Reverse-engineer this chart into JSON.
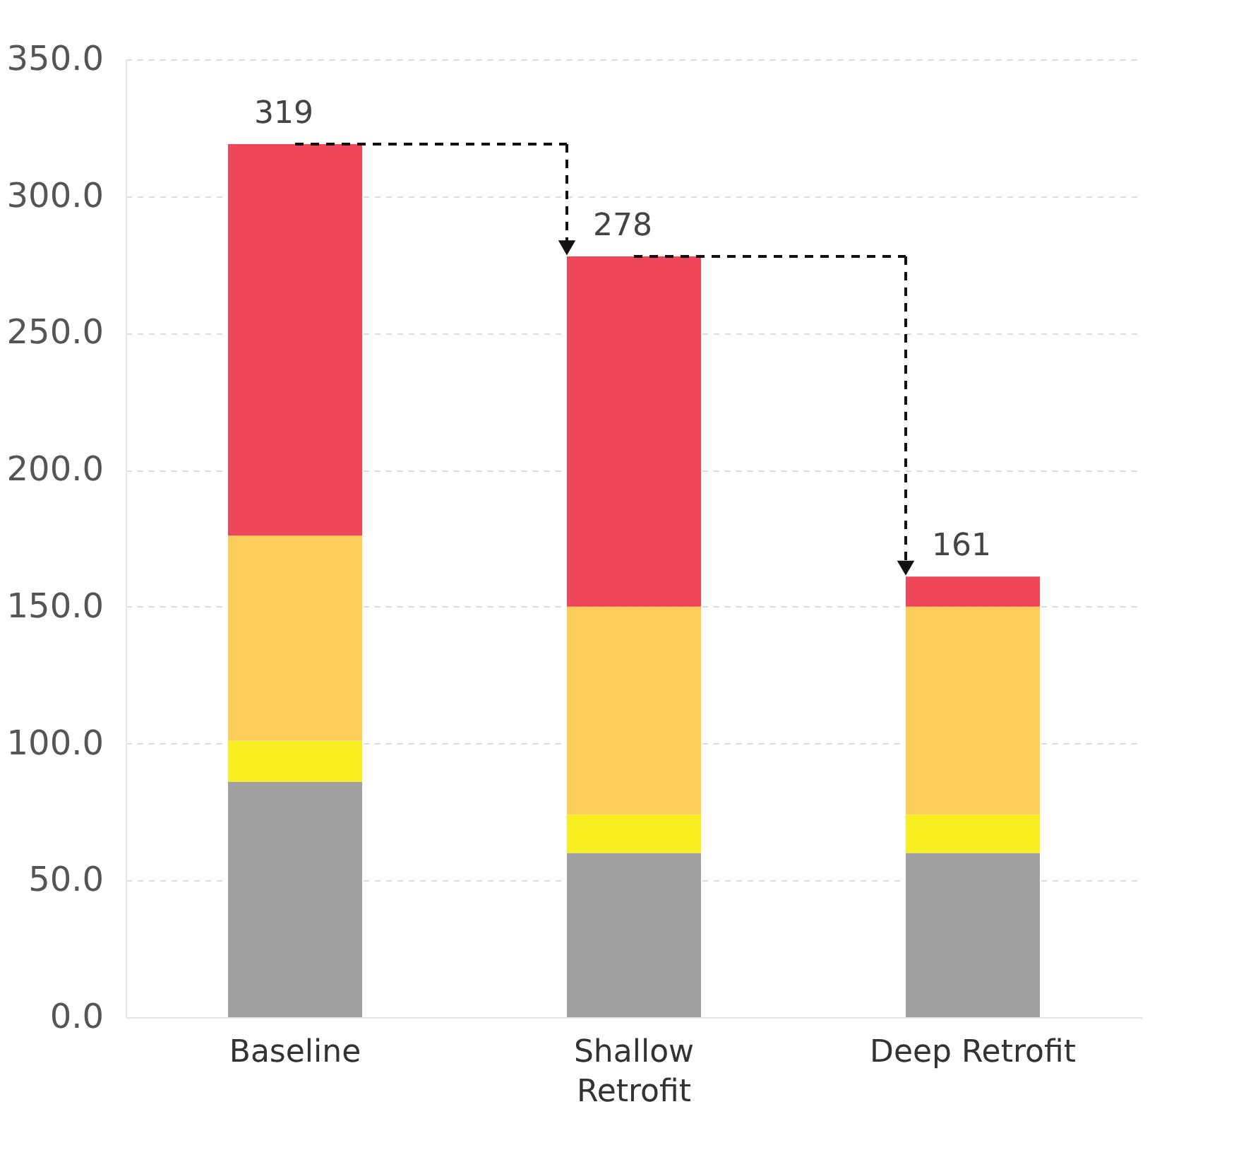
{
  "chart_data": {
    "type": "bar",
    "stacked": true,
    "categories": [
      "Baseline",
      "Shallow Retrofit",
      "Deep Retrofit"
    ],
    "series": [
      {
        "color": "#a0a0a0",
        "values": [
          86,
          60,
          60
        ]
      },
      {
        "color": "#f7ef1f",
        "values": [
          15,
          14,
          14
        ]
      },
      {
        "color": "#fdcd5a",
        "values": [
          75,
          76,
          76
        ]
      },
      {
        "color": "#f0465a",
        "values": [
          143,
          128,
          11
        ]
      }
    ],
    "totals": [
      "319",
      "278",
      "161"
    ],
    "ylim": [
      0,
      350
    ],
    "yticks": [
      {
        "value": 0,
        "label": "0.0"
      },
      {
        "value": 50,
        "label": "50.0"
      },
      {
        "value": 100,
        "label": "100.0"
      },
      {
        "value": 150,
        "label": "150.0"
      },
      {
        "value": 200,
        "label": "200.0"
      },
      {
        "value": 250,
        "label": "250.0"
      },
      {
        "value": 300,
        "label": "300.0"
      },
      {
        "value": 350,
        "label": "350.0"
      }
    ],
    "grid": "y",
    "legend": false
  }
}
